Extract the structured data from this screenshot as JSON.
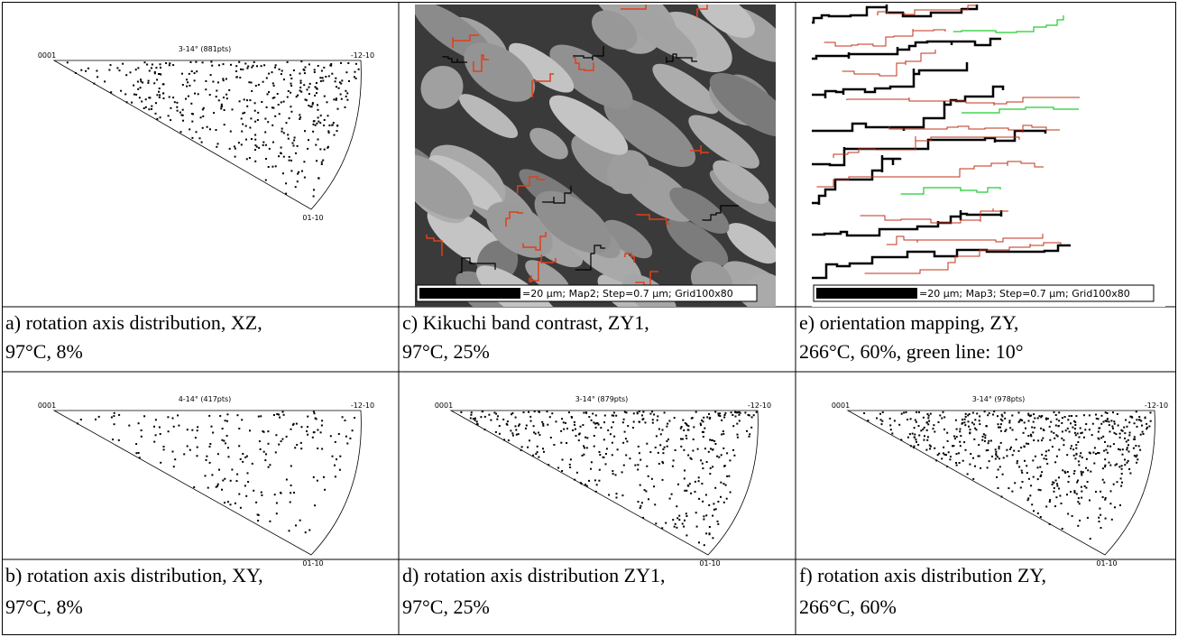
{
  "rows": [
    [
      {
        "figure": {
          "title": "3-14° (881pts)",
          "poles": [
            "0001",
            "-12-10",
            "01-10"
          ]
        },
        "caption": [
          "a) rotation axis distribution, XZ,",
          "97°C, 8%"
        ]
      },
      {
        "figure": {
          "scale_bar": "=20 µm; Map2; Step=0.7 µm; Grid100x80"
        },
        "caption": [
          "c) Kikuchi band contrast, ZY1,",
          "97°C, 25%"
        ]
      },
      {
        "figure": {
          "scale_bar": "=20 µm; Map3; Step=0.7 µm; Grid100x80"
        },
        "caption": [
          "e) orientation mapping, ZY,",
          "266°C, 60%, green line: 10°"
        ]
      }
    ],
    [
      {
        "figure": {
          "title": "4-14° (417pts)",
          "poles": [
            "0001",
            "-12-10",
            "01-10"
          ]
        },
        "caption": [
          "b) rotation axis distribution, XY,",
          "97°C, 8%"
        ]
      },
      {
        "figure": {
          "title": "3-14° (879pts)",
          "poles": [
            "0001",
            "-12-10",
            "01-10"
          ]
        },
        "caption": [
          "d) rotation axis distribution ZY1,",
          "97°C, 25%"
        ]
      },
      {
        "figure": {
          "title": "3-14° (978pts)",
          "poles": [
            "0001",
            "-12-10",
            "01-10"
          ]
        },
        "caption": [
          "f) rotation axis distribution ZY,",
          "266°C, 60%"
        ]
      }
    ]
  ]
}
